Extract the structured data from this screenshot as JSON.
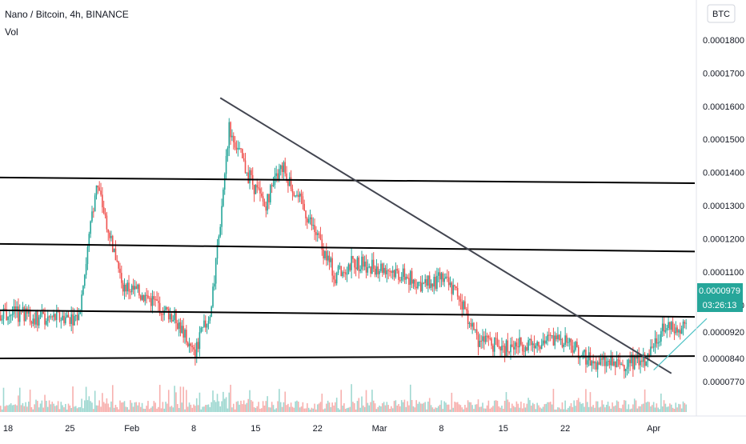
{
  "header": {
    "title": "Nano / Bitcoin, 4h, BINANCE",
    "indicator": "Vol"
  },
  "price_axis": {
    "currency": "BTC",
    "labels": [
      "0.0001800",
      "0.0001700",
      "0.0001600",
      "0.0001500",
      "0.0001400",
      "0.0001300",
      "0.0001200",
      "0.0001100",
      "0.0001000",
      "0.0000920",
      "0.0000840",
      "0.0000770"
    ]
  },
  "last_price": {
    "value": "0.0000979",
    "countdown": "03:26:13"
  },
  "colors": {
    "up": "#26a69a",
    "down": "#ef5350",
    "vol_up": "#9fd8d1",
    "vol_down": "#f7b0ae",
    "badge": "#26a69a",
    "trendline": "#000000",
    "diag": "#434651",
    "support_rising": "#4fc3c6"
  },
  "chart_data": {
    "type": "candlestick",
    "title": "Nano / Bitcoin, 4h, BINANCE",
    "xlabel": "",
    "ylabel": "BTC",
    "ylim": [
      7.4e-05,
      0.00018
    ],
    "x_ticks": [
      "18",
      "25",
      "Feb",
      "8",
      "15",
      "22",
      "Mar",
      "8",
      "15",
      "22",
      "Apr"
    ],
    "anchors": [
      {
        "date": "Jan 12",
        "price": 9.5e-05
      },
      {
        "date": "Jan 17",
        "price": 9.8e-05
      },
      {
        "date": "Jan 22",
        "price": 9.6e-05
      },
      {
        "date": "Jan 26",
        "price": 9.65e-05
      },
      {
        "date": "Jan 28",
        "price": 0.000137
      },
      {
        "date": "Jan 31",
        "price": 0.000106
      },
      {
        "date": "Feb 3",
        "price": 0.000102
      },
      {
        "date": "Feb 6",
        "price": 9.6e-05
      },
      {
        "date": "Feb 8",
        "price": 8.5e-05
      },
      {
        "date": "Feb 10",
        "price": 9.9e-05
      },
      {
        "date": "Feb 11",
        "price": 0.000125
      },
      {
        "date": "Feb 12",
        "price": 0.000154
      },
      {
        "date": "Feb 14",
        "price": 0.00014
      },
      {
        "date": "Feb 16",
        "price": 0.00013
      },
      {
        "date": "Feb 18",
        "price": 0.000142
      },
      {
        "date": "Feb 21",
        "price": 0.000126
      },
      {
        "date": "Feb 24",
        "price": 0.000109
      },
      {
        "date": "Feb 26",
        "price": 0.000113
      },
      {
        "date": "Mar 2",
        "price": 0.000111
      },
      {
        "date": "Mar 6",
        "price": 0.000106
      },
      {
        "date": "Mar 8",
        "price": 0.000108
      },
      {
        "date": "Mar 10",
        "price": 0.000103
      },
      {
        "date": "Mar 12",
        "price": 9e-05
      },
      {
        "date": "Mar 15",
        "price": 8.7e-05
      },
      {
        "date": "Mar 18",
        "price": 8.9e-05
      },
      {
        "date": "Mar 22",
        "price": 9e-05
      },
      {
        "date": "Mar 25",
        "price": 8.3e-05
      },
      {
        "date": "Mar 28",
        "price": 8.2e-05
      },
      {
        "date": "Mar 31",
        "price": 8.4e-05
      },
      {
        "date": "Apr 2",
        "price": 9.3e-05
      },
      {
        "date": "Apr 4",
        "price": 9.2e-05
      },
      {
        "date": "Apr 6",
        "price": 9.79e-05
      }
    ],
    "trendlines": [
      {
        "type": "horizontal",
        "price_start": 0.0001385,
        "price_end": 0.0001368
      },
      {
        "type": "horizontal",
        "price_start": 0.0001185,
        "price_end": 0.0001162
      },
      {
        "type": "horizontal",
        "price_start": 9.85e-05,
        "price_end": 9.65e-05
      },
      {
        "type": "horizontal",
        "price_start": 8.4e-05,
        "price_end": 8.47e-05
      },
      {
        "type": "diagonal",
        "from": {
          "date": "Feb 11",
          "price": 0.0001625
        },
        "to": {
          "date": "Apr 3",
          "price": 7.95e-05
        }
      },
      {
        "type": "rising",
        "from": {
          "date": "Apr 1",
          "price": 8.05e-05
        },
        "to": {
          "date": "Apr 7",
          "price": 9.6e-05
        }
      }
    ]
  }
}
